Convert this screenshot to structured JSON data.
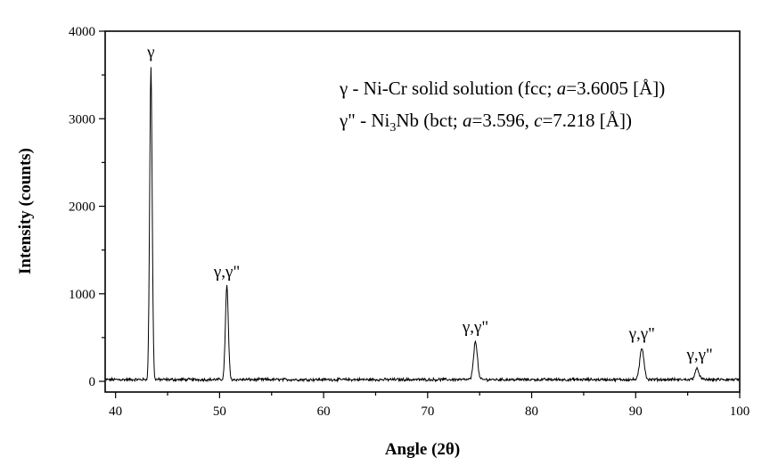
{
  "chart_data": {
    "type": "line",
    "xlabel": "Angle (2θ)",
    "ylabel": "Intensity (counts)",
    "xlim": [
      39,
      100
    ],
    "ylim": [
      -60,
      4000
    ],
    "xticks": [
      40,
      50,
      60,
      70,
      80,
      90,
      100
    ],
    "yticks": [
      0,
      1000,
      2000,
      3000,
      4000
    ],
    "grid": false,
    "background_level": 20,
    "peaks": [
      {
        "x": 43.4,
        "y": 3600,
        "label": "γ"
      },
      {
        "x": 50.7,
        "y": 1090,
        "label": "γ,γ\""
      },
      {
        "x": 74.6,
        "y": 460,
        "label": "γ,γ\""
      },
      {
        "x": 90.6,
        "y": 380,
        "label": "γ,γ\""
      },
      {
        "x": 95.9,
        "y": 140,
        "label": "γ,γ\""
      }
    ],
    "legend": {
      "entry1": {
        "symbol": "γ",
        "text": " - Ni-Cr solid solution (fcc; ",
        "param": "a",
        "value": "=3.6005 [",
        "unit": "Å",
        "close": "])"
      },
      "entry2": {
        "symbol": "γ\"",
        "text": " - Ni",
        "sub": "3",
        "text2": "Nb (bct; ",
        "param1": "a",
        "value1": "=3.596, ",
        "param2": "c",
        "value2": "=7.218 [",
        "unit": "Å",
        "close": "])"
      }
    },
    "colors": {
      "line": "#000000",
      "axis": "#000000"
    }
  }
}
